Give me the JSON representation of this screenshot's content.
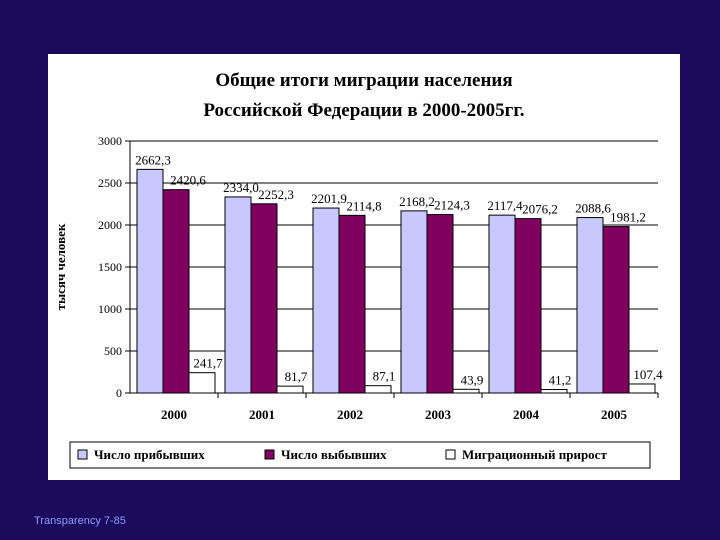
{
  "footer": "Transparency 7-85",
  "chart_data": {
    "type": "bar",
    "title_lines": [
      "Общие итоги миграции населения",
      "Российской Федерации в 2000-2005гг."
    ],
    "ylabel": "тысяч человек",
    "xlabel": "",
    "ylim": [
      0,
      3000
    ],
    "yticks": [
      0,
      500,
      1000,
      1500,
      2000,
      2500,
      3000
    ],
    "categories": [
      "2000",
      "2001",
      "2002",
      "2003",
      "2004",
      "2005"
    ],
    "legend_position": "bottom",
    "grid": true,
    "series": [
      {
        "name": "Число прибывших",
        "color": "#c8c8ff",
        "values": [
          2662.3,
          2334.0,
          2201.9,
          2168.2,
          2117.4,
          2088.6
        ],
        "labels": [
          "2662,3",
          "2334,0",
          "2201,9",
          "2168,2",
          "2117,4",
          "2088,6"
        ]
      },
      {
        "name": "Число выбывших",
        "color": "#800060",
        "values": [
          2420.6,
          2252.3,
          2114.8,
          2124.3,
          2076.2,
          1981.2
        ],
        "labels": [
          "2420,6",
          "2252,3",
          "2114,8",
          "2124,3",
          "2076,2",
          "1981,2"
        ]
      },
      {
        "name": "Миграционный прирост",
        "color": "#ffffff",
        "values": [
          241.7,
          81.7,
          87.1,
          43.9,
          41.2,
          107.4
        ],
        "labels": [
          "241,7",
          "81,7",
          "87,1",
          "43,9",
          "41,2",
          "107,4"
        ]
      }
    ]
  }
}
